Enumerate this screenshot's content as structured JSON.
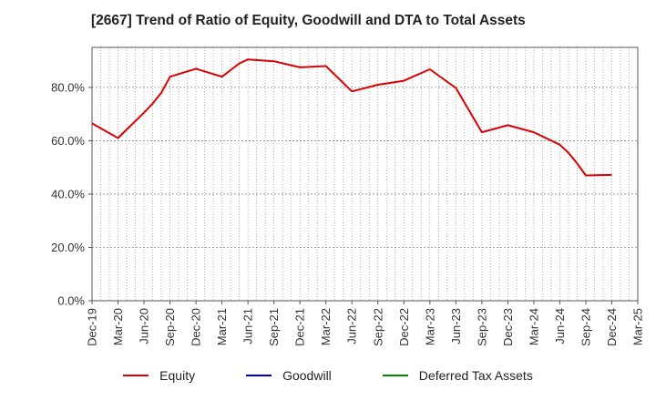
{
  "chart_data": {
    "type": "line",
    "title": "[2667]  Trend of Ratio of Equity, Goodwill and DTA to Total Assets",
    "xlabel": "",
    "ylabel": "",
    "ylim": [
      0,
      95
    ],
    "yticks": [
      0,
      20,
      40,
      60,
      80
    ],
    "ytick_labels": [
      "0.0%",
      "20.0%",
      "40.0%",
      "60.0%",
      "80.0%"
    ],
    "x_range": [
      "Dec-19",
      "Mar-25"
    ],
    "xtick_labels": [
      "Dec-19",
      "Mar-20",
      "Jun-20",
      "Sep-20",
      "Dec-20",
      "Mar-21",
      "Jun-21",
      "Sep-21",
      "Dec-21",
      "Mar-22",
      "Jun-22",
      "Sep-22",
      "Dec-22",
      "Mar-23",
      "Jun-23",
      "Sep-23",
      "Dec-23",
      "Mar-24",
      "Jun-24",
      "Sep-24",
      "Dec-24",
      "Mar-25"
    ],
    "grid": true,
    "legend_position": "bottom",
    "series": [
      {
        "name": "Equity",
        "color": "#dd0000",
        "x": [
          "Dec-19",
          "Mar-20",
          "Jun-20",
          "Jul-20",
          "Aug-20",
          "Sep-20",
          "Dec-20",
          "Mar-21",
          "Apr-21",
          "May-21",
          "Jun-21",
          "Sep-21",
          "Dec-21",
          "Mar-22",
          "Jun-22",
          "Sep-22",
          "Dec-22",
          "Mar-23",
          "Jun-23",
          "Sep-23",
          "Dec-23",
          "Mar-24",
          "Jun-24",
          "Jul-24",
          "Aug-24",
          "Sep-24",
          "Dec-24"
        ],
        "values": [
          66.5,
          61.0,
          70.5,
          74.0,
          78.0,
          84.0,
          87.0,
          84.0,
          86.5,
          89.0,
          90.5,
          89.8,
          87.5,
          88.0,
          78.5,
          81.0,
          82.5,
          86.8,
          79.8,
          63.2,
          65.8,
          63.2,
          58.5,
          55.5,
          51.5,
          47.0,
          47.2
        ]
      },
      {
        "name": "Goodwill",
        "color": "#0000cc",
        "x": [],
        "values": []
      },
      {
        "name": "Deferred Tax Assets",
        "color": "#008800",
        "x": [],
        "values": []
      }
    ]
  }
}
